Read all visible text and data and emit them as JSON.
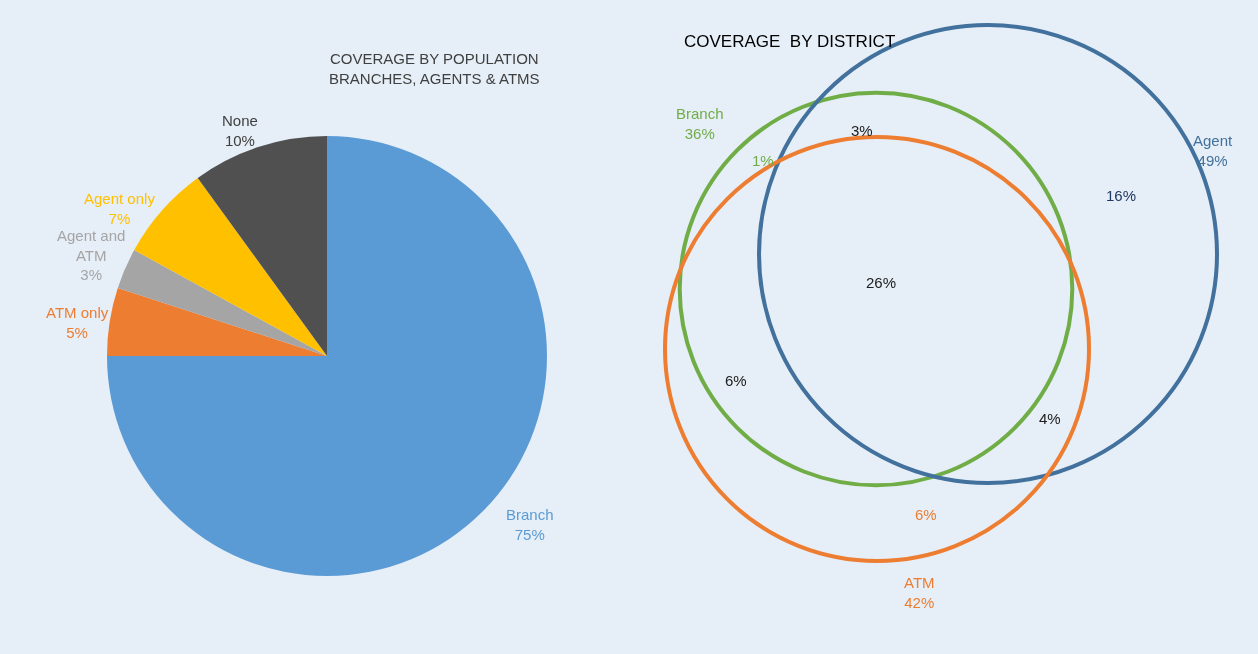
{
  "chart_data": [
    {
      "type": "pie",
      "title": "COVERAGE BY POPULATION\nBRANCHES, AGENTS & ATMS",
      "categories": [
        "Branch",
        "ATM only",
        "Agent and ATM",
        "Agent only",
        "None"
      ],
      "values": [
        75,
        5,
        3,
        7,
        10
      ],
      "value_labels": [
        "75%",
        "5%",
        "3%",
        "7%",
        "10%"
      ],
      "colors": [
        "#5b9bd5",
        "#ed7d31",
        "#a5a5a5",
        "#ffc000",
        "#505050"
      ]
    },
    {
      "type": "other",
      "title": "COVERAGE  BY DISTRICT",
      "categories": [
        "Branch",
        "Agent",
        "ATM"
      ],
      "values": [
        36,
        49,
        42
      ],
      "value_labels": [
        "36%",
        "49%",
        "42%"
      ],
      "colors": [
        "#70ad47",
        "#41719c",
        "#ed7d31"
      ],
      "annotations": [
        "1%",
        "3%",
        "16%",
        "26%",
        "6%",
        "4%",
        "6%"
      ]
    }
  ]
}
